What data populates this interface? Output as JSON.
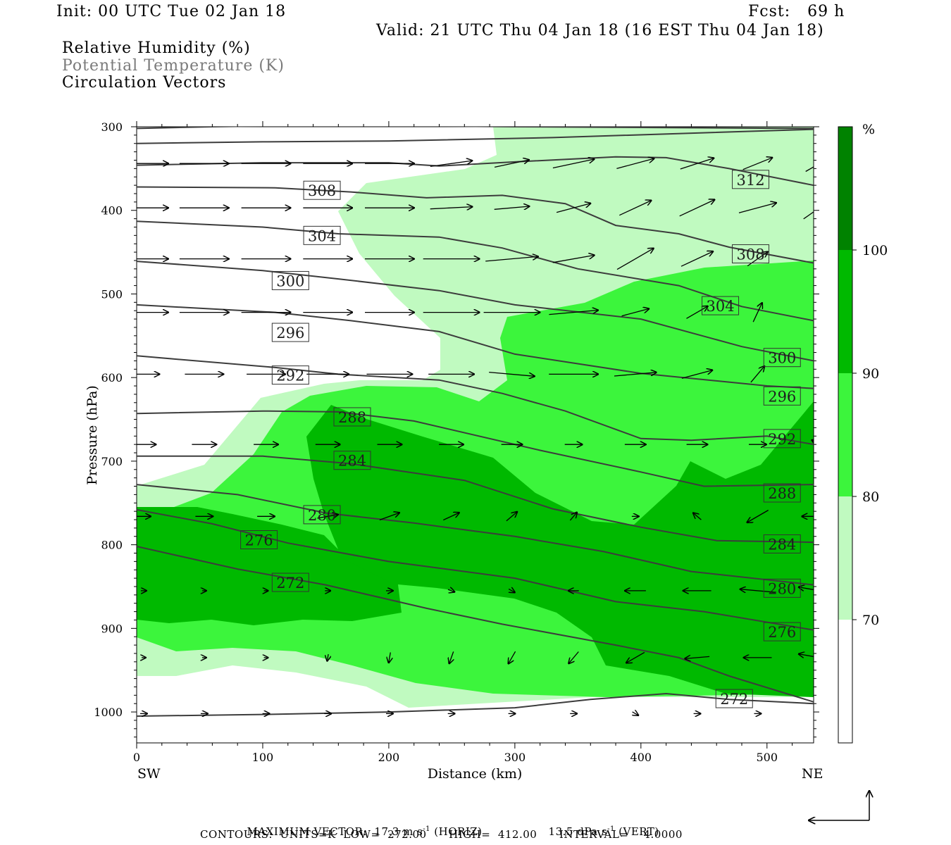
{
  "header": {
    "init": "Init: 00 UTC Tue 02 Jan 18",
    "fcst": "Fcst:   69 h",
    "valid": "Valid: 21 UTC Thu 04 Jan 18 (16 EST Thu 04 Jan 18)",
    "field1": "Relative Humidity (%)",
    "field2": "Potential Temperature (K)",
    "field3": "Circulation Vectors"
  },
  "footer": {
    "max_vector": "MAXIMUM VECTOR:  17.3 m s",
    "max_vector_exp": "-1",
    "max_vector_h": " (HORIZ)",
    "vert_value": "13.5 dPa s",
    "vert_exp": "-1",
    "vert_label": " (VERT)",
    "contours": "CONTOURS:  UNITS=K  LOW=  272.00      HIGH=  412.00      INTERVAL=    4.0000"
  },
  "chart_data": {
    "type": "contour",
    "xlabel": "Distance (km)",
    "ylabel": "Pressure (hPa)",
    "x_left_label": "SW",
    "x_right_label": "NE",
    "xlim": [
      0,
      537
    ],
    "ylim": [
      1037,
      300
    ],
    "x_ticks": [
      0,
      100,
      200,
      300,
      400,
      500
    ],
    "y_ticks": [
      300,
      400,
      500,
      600,
      700,
      800,
      900,
      1000
    ],
    "colorbar": {
      "unit": "%",
      "levels": [
        70,
        80,
        90,
        100
      ],
      "colors": [
        "#ffffff",
        "#c0fac0",
        "#3cf53c",
        "#00b900",
        "#008200"
      ]
    },
    "fill_colors": {
      "rh70": "#c0fac0",
      "rh80": "#3cf53c",
      "rh90": "#00b900"
    },
    "contour_color": "#3c3c3c",
    "theta_labels": [
      {
        "text": "308",
        "x": 147,
        "p": 376
      },
      {
        "text": "304",
        "x": 147,
        "p": 430
      },
      {
        "text": "300",
        "x": 122,
        "p": 484
      },
      {
        "text": "296",
        "x": 122,
        "p": 546
      },
      {
        "text": "292",
        "x": 122,
        "p": 597
      },
      {
        "text": "288",
        "x": 171,
        "p": 647
      },
      {
        "text": "284",
        "x": 171,
        "p": 699
      },
      {
        "text": "280",
        "x": 147,
        "p": 764
      },
      {
        "text": "276",
        "x": 97,
        "p": 794
      },
      {
        "text": "272",
        "x": 122,
        "p": 845
      },
      {
        "text": "312",
        "x": 487,
        "p": 363
      },
      {
        "text": "308",
        "x": 487,
        "p": 452
      },
      {
        "text": "304",
        "x": 463,
        "p": 514
      },
      {
        "text": "300",
        "x": 512,
        "p": 576
      },
      {
        "text": "296",
        "x": 512,
        "p": 622
      },
      {
        "text": "292",
        "x": 512,
        "p": 673
      },
      {
        "text": "288",
        "x": 512,
        "p": 738
      },
      {
        "text": "284",
        "x": 512,
        "p": 799
      },
      {
        "text": "280",
        "x": 512,
        "p": 852
      },
      {
        "text": "276",
        "x": 512,
        "p": 904
      },
      {
        "text": "272",
        "x": 474,
        "p": 984
      }
    ]
  },
  "vector_key": {
    "name": "reference-vector"
  }
}
